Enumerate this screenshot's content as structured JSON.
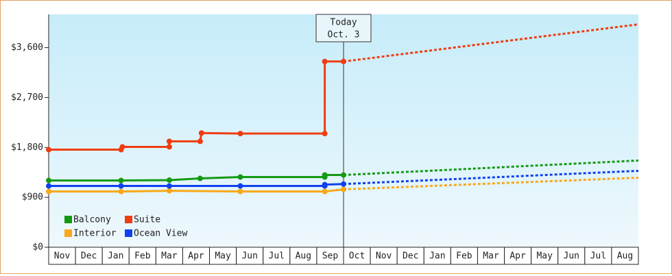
{
  "chart_data": {
    "type": "line",
    "annotation": [
      "Today",
      "Oct. 3"
    ],
    "annotation_x": 11,
    "categories": [
      "Nov",
      "Dec",
      "Jan",
      "Feb",
      "Mar",
      "Apr",
      "May",
      "Jun",
      "Jul",
      "Aug",
      "Sep",
      "Oct",
      "Nov",
      "Dec",
      "Jan",
      "Feb",
      "Mar",
      "Apr",
      "May",
      "Jun",
      "Jul",
      "Aug"
    ],
    "xlim": [
      0,
      22
    ],
    "ylim": [
      0,
      4200
    ],
    "yticks": [
      {
        "value": 0,
        "label": "$0"
      },
      {
        "value": 900,
        "label": "$900"
      },
      {
        "value": 1800,
        "label": "$1,800"
      },
      {
        "value": 2700,
        "label": "$2,700"
      },
      {
        "value": 3600,
        "label": "$3,600"
      }
    ],
    "legend": "lower left",
    "series": [
      {
        "name": "Balcony",
        "color": "#139a13",
        "x": [
          0,
          2.7,
          4.5,
          5.65,
          7.15,
          10.3,
          10.3,
          11
        ],
        "values": [
          1204,
          1204,
          1210,
          1241,
          1266,
          1266,
          1303,
          1303
        ],
        "forecast_x": [
          11,
          22
        ],
        "forecast_values": [
          1303,
          1564
        ]
      },
      {
        "name": "Suite",
        "color": "#f03c10",
        "x": [
          0,
          2.7,
          2.75,
          4.5,
          4.5,
          5.65,
          5.7,
          7.15,
          10.3,
          10.3,
          11
        ],
        "values": [
          1760,
          1760,
          1810,
          1810,
          1910,
          1910,
          2060,
          2050,
          2050,
          3350,
          3350
        ],
        "forecast_x": [
          11,
          22
        ],
        "forecast_values": [
          3350,
          4020
        ]
      },
      {
        "name": "Interior",
        "color": "#f8a818",
        "x": [
          0,
          2.7,
          4.5,
          7.15,
          10.3,
          11
        ],
        "values": [
          1005,
          1005,
          1018,
          1005,
          1005,
          1043
        ],
        "forecast_x": [
          11,
          22
        ],
        "forecast_values": [
          1043,
          1254
        ]
      },
      {
        "name": "Ocean View",
        "color": "#1040f0",
        "x": [
          0,
          2.7,
          4.5,
          7.15,
          10.3,
          10.3,
          11
        ],
        "values": [
          1105,
          1105,
          1105,
          1105,
          1105,
          1130,
          1140
        ],
        "forecast_x": [
          11,
          22
        ],
        "forecast_values": [
          1140,
          1378
        ]
      }
    ]
  }
}
